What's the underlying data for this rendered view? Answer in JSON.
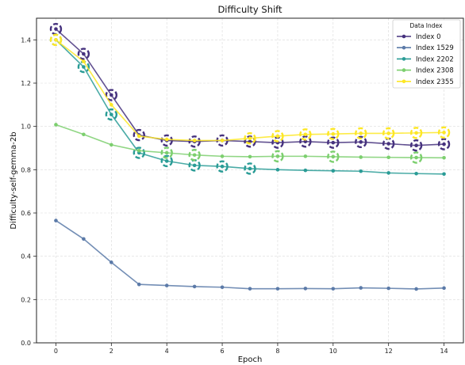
{
  "chart_data": {
    "type": "line",
    "title": "Difficulty Shift",
    "xlabel": "Epoch",
    "ylabel": "Difficulty-self-gemma-2b",
    "xlim": [
      -0.7,
      14.7
    ],
    "ylim": [
      0.0,
      1.5
    ],
    "xticks": [
      0,
      2,
      4,
      6,
      8,
      10,
      12,
      14
    ],
    "yticks": [
      0.0,
      0.2,
      0.4,
      0.6,
      0.8,
      1.0,
      1.2,
      1.4
    ],
    "tick_labels_x": [
      "0",
      "2",
      "4",
      "6",
      "8",
      "10",
      "12",
      "14"
    ],
    "tick_labels_y": [
      "0.0",
      "0.2",
      "0.4",
      "0.6",
      "0.8",
      "1.0",
      "1.2",
      "1.4"
    ],
    "grid": true,
    "legend": {
      "title": "Data Index",
      "placement": "top-right"
    },
    "x": [
      0,
      1,
      2,
      3,
      4,
      5,
      6,
      7,
      8,
      9,
      10,
      11,
      12,
      13,
      14
    ],
    "series": [
      {
        "name": "Index 0",
        "color": "#46327e",
        "values": [
          1.45,
          1.335,
          1.145,
          0.96,
          0.935,
          0.93,
          0.935,
          0.93,
          0.925,
          0.93,
          0.925,
          0.928,
          0.92,
          0.912,
          0.918
        ],
        "highlighted": [
          0,
          1,
          2,
          3,
          4,
          5,
          6,
          7,
          8,
          9,
          10,
          11,
          12,
          13,
          14
        ]
      },
      {
        "name": "Index 1529",
        "color": "#5b7aa8",
        "values": [
          0.565,
          0.48,
          0.372,
          0.27,
          0.265,
          0.26,
          0.257,
          0.25,
          0.25,
          0.251,
          0.25,
          0.254,
          0.252,
          0.249,
          0.253
        ],
        "highlighted": []
      },
      {
        "name": "Index 2202",
        "color": "#2a9c96",
        "values": [
          1.4,
          1.275,
          1.055,
          0.878,
          0.84,
          0.82,
          0.815,
          0.805,
          0.8,
          0.797,
          0.795,
          0.793,
          0.785,
          0.782,
          0.78
        ],
        "highlighted": [
          0,
          1,
          2,
          3,
          4,
          5,
          6,
          7
        ]
      },
      {
        "name": "Index 2308",
        "color": "#7ccf6e",
        "values": [
          1.008,
          0.963,
          0.915,
          0.888,
          0.878,
          0.868,
          0.862,
          0.86,
          0.862,
          0.862,
          0.86,
          0.858,
          0.857,
          0.856,
          0.855
        ],
        "highlighted": [
          4,
          5,
          8,
          10,
          13
        ]
      },
      {
        "name": "Index 2355",
        "color": "#fde725",
        "values": [
          1.4,
          1.3,
          1.1,
          0.955,
          0.94,
          0.935,
          0.935,
          0.945,
          0.955,
          0.963,
          0.965,
          0.968,
          0.968,
          0.97,
          0.972
        ],
        "highlighted": [
          0,
          7,
          8,
          9,
          10,
          11,
          12,
          13,
          14
        ]
      }
    ]
  }
}
